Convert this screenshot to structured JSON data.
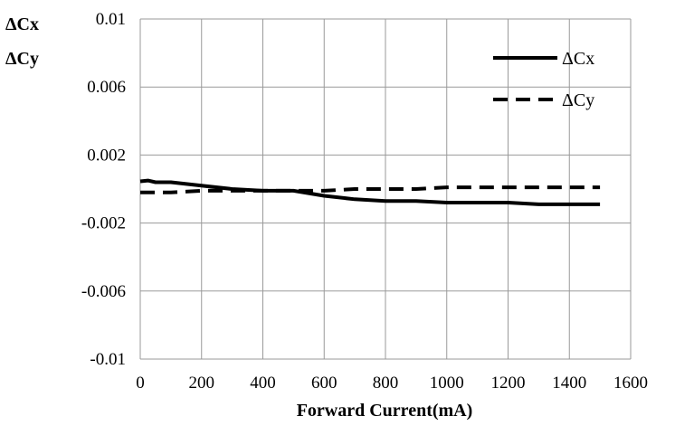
{
  "chart_data": {
    "type": "line",
    "xlabel": "Forward Current(mA)",
    "ylabel_lines": [
      "ΔCx",
      "ΔCy"
    ],
    "xlim": [
      0,
      1600
    ],
    "ylim": [
      -0.01,
      0.01
    ],
    "x_ticks": [
      "0",
      "200",
      "400",
      "600",
      "800",
      "1000",
      "1200",
      "1400",
      "1600"
    ],
    "y_ticks": [
      "0.01",
      "0.006",
      "0.002",
      "-0.002",
      "-0.006",
      "-0.01"
    ],
    "grid": true,
    "legend_position": "top-right",
    "series": [
      {
        "name": "ΔCx",
        "style": "solid",
        "color": "#000000",
        "x": [
          0,
          25,
          50,
          100,
          200,
          300,
          400,
          500,
          600,
          700,
          800,
          900,
          1000,
          1100,
          1200,
          1300,
          1400,
          1500
        ],
        "y": [
          0.00045,
          0.0005,
          0.0004,
          0.0004,
          0.0002,
          0.0,
          -0.0001,
          -0.0001,
          -0.0004,
          -0.0006,
          -0.0007,
          -0.0007,
          -0.0008,
          -0.0008,
          -0.0008,
          -0.0009,
          -0.0009,
          -0.0009
        ]
      },
      {
        "name": "ΔCy",
        "style": "dashed",
        "color": "#000000",
        "x": [
          0,
          100,
          200,
          300,
          400,
          500,
          600,
          700,
          800,
          900,
          1000,
          1100,
          1200,
          1300,
          1400,
          1500
        ],
        "y": [
          -0.0002,
          -0.0002,
          -0.0001,
          -0.0001,
          -0.0001,
          -0.0001,
          -0.0001,
          0.0,
          0.0,
          0.0,
          0.0001,
          0.0001,
          0.0001,
          0.0001,
          0.0001,
          0.0001
        ]
      }
    ]
  }
}
